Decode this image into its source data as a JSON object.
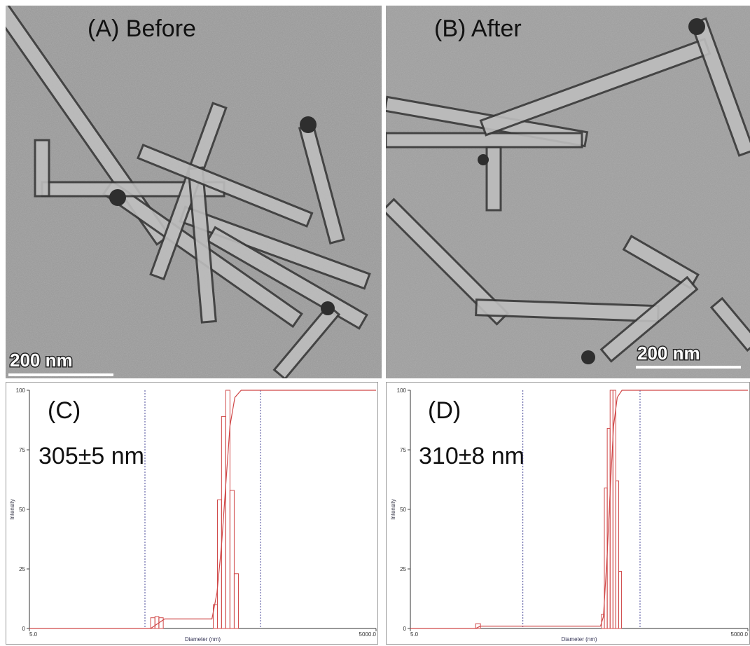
{
  "panels": [
    {
      "label": "(A) Before",
      "scale_bar": "200 nm"
    },
    {
      "label": "(B) After",
      "scale_bar": "200 nm"
    }
  ],
  "chart_data": [
    {
      "type": "histogram",
      "label": "(C)",
      "annotation": "305±5 nm",
      "xlabel": "Diameter (nm)",
      "ylabel": "Intensity",
      "log_x": true,
      "xlim": [
        5,
        5000
      ],
      "ylim": [
        0,
        100
      ],
      "xticks": [
        {
          "value": 5,
          "label": "5.0"
        },
        {
          "value": 5000,
          "label": "5000.0"
        }
      ],
      "yticks": [
        0,
        25,
        50,
        75,
        100
      ],
      "bins": [
        56,
        61,
        66,
        72,
        195,
        212,
        230,
        250,
        272,
        296,
        322
      ],
      "values": [
        4.5,
        5,
        4.5,
        0,
        10,
        54,
        89,
        100,
        58,
        23
      ],
      "color": "#d04848",
      "cumulative": {
        "x": [
          5,
          56,
          74,
          190,
          210,
          230,
          250,
          272,
          300,
          340,
          5000
        ],
        "values": [
          0,
          0,
          4,
          4,
          15,
          35,
          60,
          85,
          97,
          100,
          100
        ]
      },
      "cursors": [
        50,
        500
      ]
    },
    {
      "type": "histogram",
      "label": "(D)",
      "annotation": "310±8 nm",
      "xlabel": "Diameter (nm)",
      "ylabel": "Intensity",
      "log_x": true,
      "xlim": [
        5,
        5000
      ],
      "ylim": [
        0,
        100
      ],
      "xticks": [
        {
          "value": 5,
          "label": "5.0"
        },
        {
          "value": 5000,
          "label": "5000.0"
        }
      ],
      "yticks": [
        0,
        25,
        50,
        75,
        100
      ],
      "bins": [
        19,
        21,
        250,
        265,
        281,
        298,
        316,
        335,
        355,
        376
      ],
      "values": [
        2,
        0,
        6,
        59,
        84,
        100,
        100,
        62,
        24
      ],
      "color": "#d04848",
      "cumulative": {
        "x": [
          5,
          19,
          21,
          245,
          260,
          280,
          300,
          320,
          345,
          380,
          5000
        ],
        "values": [
          0,
          0,
          1,
          1,
          5,
          30,
          60,
          85,
          97,
          100,
          100
        ]
      },
      "cursors": [
        50,
        550
      ]
    }
  ]
}
